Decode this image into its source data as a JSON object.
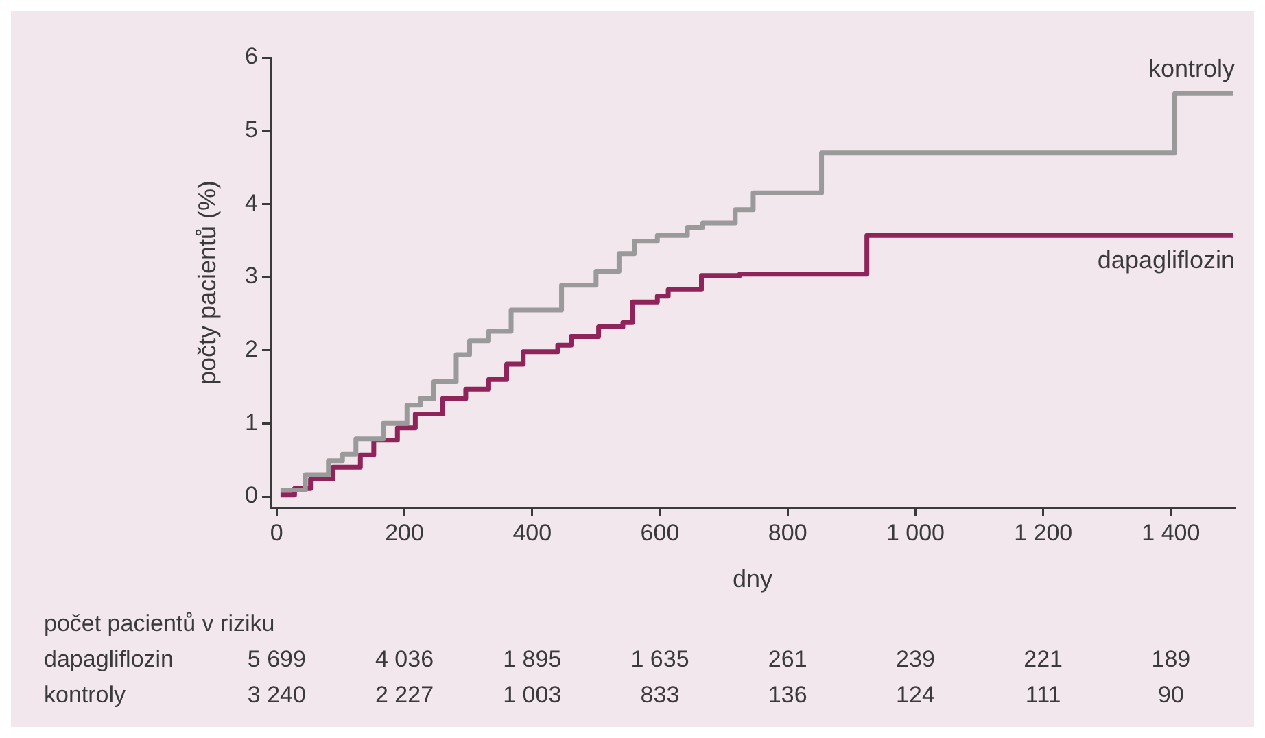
{
  "chart_data": {
    "type": "step",
    "xlabel": "dny",
    "ylabel": "počty pacientů (%)",
    "xlim": [
      -10,
      1500
    ],
    "ylim": [
      -0.15,
      6
    ],
    "xticks": [
      0,
      200,
      400,
      600,
      800,
      {
        "value": 1000,
        "label": "1 000"
      },
      {
        "value": 1200,
        "label": "1 200"
      },
      {
        "value": 1400,
        "label": "1 400"
      }
    ],
    "yticks": [
      0,
      1,
      2,
      3,
      4,
      5,
      6
    ],
    "grid": false,
    "legend": false,
    "marker": "none",
    "line_style": "solid",
    "series": [
      {
        "name": "kontroly",
        "color": "#9a9a9a",
        "x": [
          6,
          45,
          81,
          103,
          124,
          167,
          204,
          225,
          246,
          281,
          302,
          332,
          367,
          446,
          500,
          536,
          560,
          596,
          643,
          667,
          718,
          746,
          853,
          1406,
          1497
        ],
        "values": [
          0.09,
          0.3,
          0.49,
          0.58,
          0.79,
          1.0,
          1.25,
          1.34,
          1.57,
          1.94,
          2.13,
          2.26,
          2.55,
          2.89,
          3.08,
          3.32,
          3.49,
          3.57,
          3.68,
          3.74,
          3.92,
          4.15,
          4.7,
          5.51,
          5.51
        ]
      },
      {
        "name": "dapagliflozin",
        "color": "#8e2459",
        "x": [
          6,
          28,
          53,
          88,
          131,
          152,
          189,
          217,
          260,
          296,
          332,
          360,
          386,
          440,
          461,
          504,
          542,
          557,
          596,
          613,
          665,
          725,
          924,
          1497
        ],
        "values": [
          0.02,
          0.11,
          0.24,
          0.4,
          0.57,
          0.77,
          0.94,
          1.13,
          1.34,
          1.47,
          1.6,
          1.81,
          1.98,
          2.07,
          2.19,
          2.32,
          2.38,
          2.66,
          2.74,
          2.83,
          3.02,
          3.04,
          3.57,
          3.57
        ]
      }
    ],
    "annotations": [
      "počet pacientů v riziku",
      "dapagliflozin",
      "5 699",
      "4 036",
      "1 895",
      "1 635",
      "261",
      "239",
      "221",
      "189",
      "kontroly",
      "3 240",
      "2 227",
      "1 003",
      "833",
      "136",
      "124",
      "111",
      "90"
    ]
  }
}
